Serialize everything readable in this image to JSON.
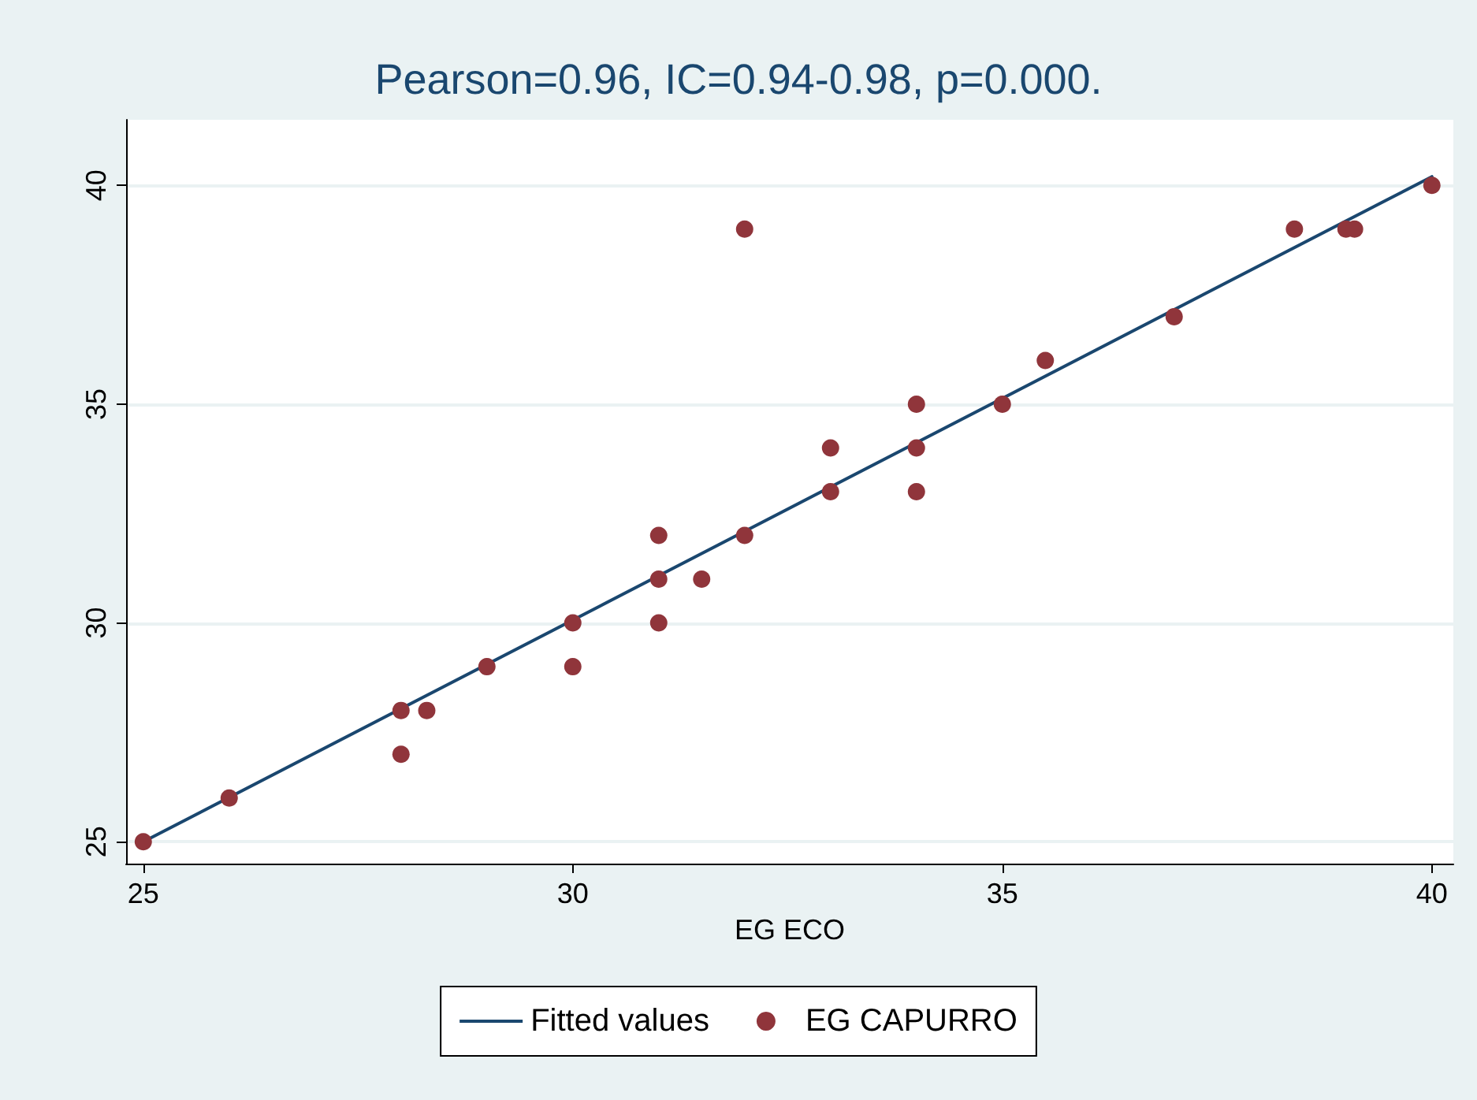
{
  "chart_data": {
    "type": "scatter",
    "title": "Pearson=0.96, IC=0.94-0.98, p=0.000.",
    "xlabel": "EG ECO",
    "xlim": [
      24.8,
      40.25
    ],
    "xticks": [
      25,
      30,
      35,
      40
    ],
    "ylim": [
      24.5,
      41.5
    ],
    "yticks": [
      25,
      30,
      35,
      40
    ],
    "grid": "y",
    "legend": "bottom",
    "marker": "circle",
    "series": [
      {
        "name": "Fitted values",
        "type": "line",
        "color": "#1a476f",
        "x": [
          25,
          40
        ],
        "values": [
          25,
          40.2
        ],
        "marker": "none",
        "line_style": "solid"
      },
      {
        "name": "EG CAPURRO",
        "color": "#90353b",
        "x": [
          25,
          26,
          28,
          28,
          28.3,
          29,
          30,
          30,
          31,
          31,
          31,
          31.5,
          32,
          32,
          33,
          33,
          34,
          34,
          34,
          35,
          35.5,
          37,
          38.4,
          39,
          39.1,
          40
        ],
        "values": [
          25,
          26,
          28,
          27,
          28,
          29,
          30,
          29,
          32,
          31,
          30,
          31,
          39,
          32,
          34,
          33,
          35,
          34,
          33,
          35,
          36,
          37,
          39,
          39,
          39,
          40
        ]
      }
    ]
  }
}
